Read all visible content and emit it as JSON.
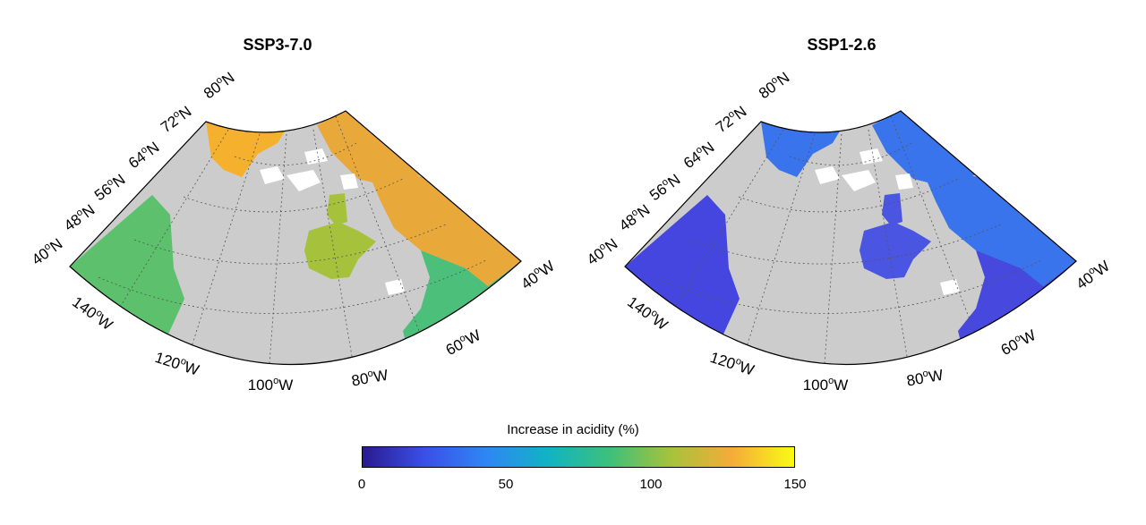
{
  "maps": [
    {
      "title": "SSP3-7.0",
      "scenario_key": "ssp370",
      "ocean_colors": {
        "pacific": "#5cc06c",
        "pacific_south": "#3fbf84",
        "arctic": "#f5b02e",
        "labrador": "#e9a93a",
        "hudson": "#a6c23d",
        "atlantic": "#4cc07a"
      }
    },
    {
      "title": "SSP1-2.6",
      "scenario_key": "ssp126",
      "ocean_colors": {
        "pacific": "#4546e0",
        "pacific_south": "#4546e0",
        "arctic": "#3a74ec",
        "labrador": "#3a74ec",
        "hudson": "#4a55e2",
        "atlantic": "#4648de"
      }
    }
  ],
  "lat_labels": [
    {
      "deg": "80",
      "hem": "N"
    },
    {
      "deg": "72",
      "hem": "N"
    },
    {
      "deg": "64",
      "hem": "N"
    },
    {
      "deg": "56",
      "hem": "N"
    },
    {
      "deg": "48",
      "hem": "N"
    },
    {
      "deg": "40",
      "hem": "N"
    }
  ],
  "lon_labels": [
    {
      "deg": "140",
      "hem": "W"
    },
    {
      "deg": "120",
      "hem": "W"
    },
    {
      "deg": "100",
      "hem": "W"
    },
    {
      "deg": "80",
      "hem": "W"
    },
    {
      "deg": "60",
      "hem": "W"
    },
    {
      "deg": "40",
      "hem": "W"
    }
  ],
  "colorbar": {
    "title": "Increase in acidity (%)",
    "ticks": [
      "0",
      "50",
      "100",
      "150"
    ],
    "range": [
      0,
      150
    ],
    "colormap": [
      "#2a1a8f",
      "#3a4fe8",
      "#2f86f5",
      "#11b3c4",
      "#3cc07c",
      "#a6c23b",
      "#f5ac37",
      "#f9fb15"
    ]
  },
  "colors": {
    "land": "#cccccc",
    "graticule": "#555555",
    "frame": "#000000",
    "lakes": "#ffffff"
  }
}
